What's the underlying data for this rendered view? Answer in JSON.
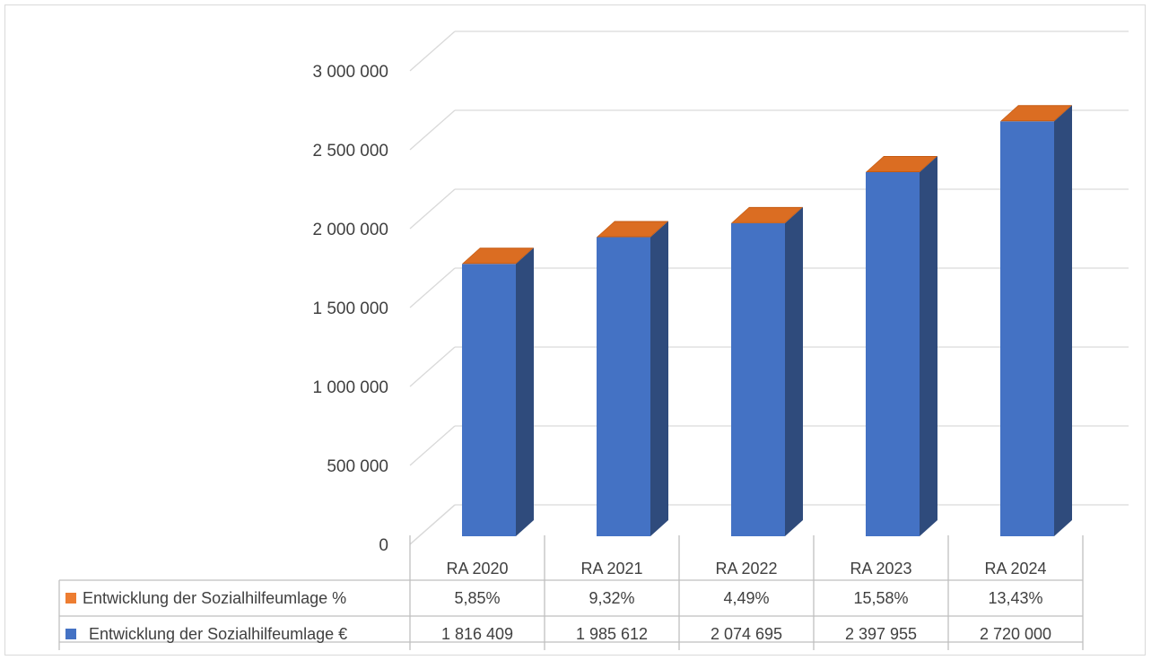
{
  "chart_data": {
    "type": "bar",
    "three_d": true,
    "categories": [
      "RA 2020",
      "RA 2021",
      "RA 2022",
      "RA 2023",
      "RA 2024"
    ],
    "series": [
      {
        "name": "Entwicklung der Sozialhilfeumlage %",
        "values": [
          5.85,
          9.32,
          4.49,
          15.58,
          13.43
        ],
        "display": [
          "5,85%",
          "9,32%",
          "4,49%",
          "15,58%",
          "13,43%"
        ],
        "color": "#ed7d31",
        "shown_as": "thin cap on top of each bar"
      },
      {
        "name": "Entwicklung der Sozialhilfeumlage €",
        "values": [
          1816409,
          1985612,
          2074695,
          2397955,
          2720000
        ],
        "display": [
          "1 816 409",
          "1 985 612",
          "2 074 695",
          "2 397 955",
          "2 720 000"
        ],
        "color": "#4472c4",
        "side_color": "#2f4b7c"
      }
    ],
    "y_ticks": [
      "0",
      "500 000",
      "1 000 000",
      "1 500 000",
      "2 000 000",
      "2 500 000",
      "3 000 000"
    ],
    "ylim": [
      0,
      3000000
    ],
    "grid": true,
    "legend": "data-table-below"
  }
}
